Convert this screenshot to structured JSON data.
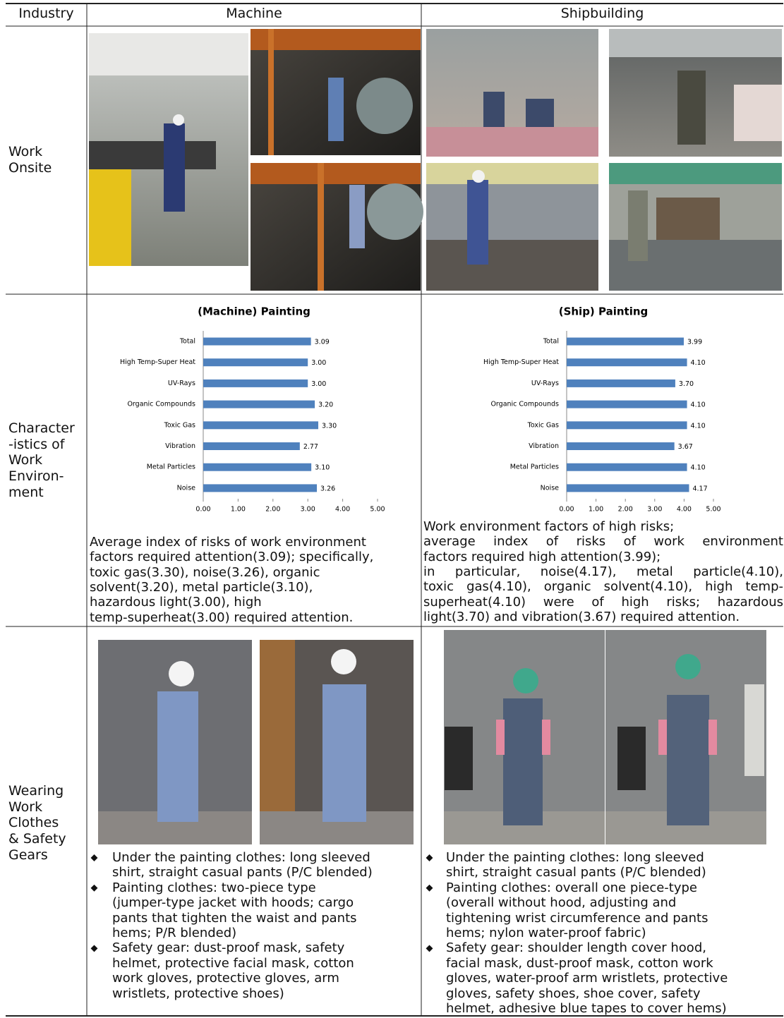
{
  "table": {
    "header": [
      "Industry",
      "Machine",
      "Shipbuilding"
    ],
    "row_labels": [
      [
        "Work",
        "Onsite"
      ],
      [
        "Character",
        "-istics of",
        "Work",
        "Environ-",
        "ment"
      ],
      [
        "Wearing",
        "Work",
        "Clothes",
        "& Safety",
        "Gears"
      ]
    ],
    "descriptions": [
      [
        [
          "Average index of risks of work environment",
          "factors required attention(3.09); specifically,",
          "toxic gas(3.30), noise(3.26), organic",
          "solvent(3.20), metal particle(3.10),",
          "hazardous light(3.00), high",
          "temp-superheat(3.00) required attention."
        ]
      ],
      [
        [
          "Work environment factors of high risks;"
        ],
        [
          "average index of risks of work environment",
          "factors required high attention(3.99);"
        ],
        [
          "in particular, noise(4.17), metal particle(4.10),",
          "toxic gas(4.10), organic solvent(4.10), high temp-",
          "superheat(4.10) were of high risks; hazardous",
          "light(3.70) and vibration(3.67) required attention."
        ]
      ]
    ],
    "bullets": [
      [
        [
          "Under the painting clothes: long sleeved",
          "shirt, straight casual pants (P/C blended)"
        ],
        [
          "Painting clothes: two-piece type",
          "(jumper-type jacket with hoods; cargo",
          "pants that tighten the waist and pants",
          "hems; P/R blended)"
        ],
        [
          "Safety gear: dust-proof mask, safety",
          "helmet, protective facial mask, cotton",
          "work gloves, protective gloves, arm",
          "wristlets, protective shoes)"
        ]
      ],
      [
        [
          "Under the painting clothes: long sleeved",
          "shirt, straight casual pants (P/C blended)"
        ],
        [
          "Painting clothes: overall one piece-type",
          "(overall without hood, adjusting and",
          "tightening wrist circumference and pants",
          "hems; nylon water-proof fabric)"
        ],
        [
          "Safety gear: shoulder length cover hood,",
          "facial mask, dust-proof mask, cotton work",
          "gloves, water-proof arm wristlets, protective",
          "gloves, safety shoes, shoe cover, safety",
          "helmet, adhesive blue tapes to cover hems)"
        ]
      ]
    ]
  },
  "chart_data": [
    {
      "type": "bar",
      "orientation": "horizontal",
      "title": "(Machine) Painting",
      "categories": [
        "Total",
        "High Temp-Super Heat",
        "UV-Rays",
        "Organic Compounds",
        "Toxic Gas",
        "Vibration",
        "Metal Particles",
        "Noise"
      ],
      "values": [
        3.09,
        3.0,
        3.0,
        3.2,
        3.3,
        2.77,
        3.1,
        3.26
      ],
      "value_labels": [
        "3.09",
        "3.00",
        "3.00",
        "3.20",
        "3.30",
        "2.77",
        "3.10",
        "3.26"
      ],
      "color": "#4f81bd",
      "xlim": [
        0,
        5
      ],
      "xticks": [
        {
          "value": 0,
          "label": "0.00"
        },
        {
          "value": 1,
          "label": "1.00"
        },
        {
          "value": 2,
          "label": "2.00"
        },
        {
          "value": 3,
          "label": "3.00"
        },
        {
          "value": 4,
          "label": "4.00"
        },
        {
          "value": 5,
          "label": "5.00"
        }
      ]
    },
    {
      "type": "bar",
      "orientation": "horizontal",
      "title": "(Ship) Painting",
      "categories": [
        "Total",
        "High Temp-Super Heat",
        "UV-Rays",
        "Organic Compounds",
        "Toxic Gas",
        "Vibration",
        "Metal Particles",
        "Noise"
      ],
      "values": [
        3.99,
        4.1,
        3.7,
        4.1,
        4.1,
        3.67,
        4.1,
        4.17
      ],
      "value_labels": [
        "3.99",
        "4.10",
        "3.70",
        "4.10",
        "4.10",
        "3.67",
        "4.10",
        "4.17"
      ],
      "color": "#4f81bd",
      "xlim": [
        0,
        5
      ],
      "xticks": [
        {
          "value": 0,
          "label": "0.00"
        },
        {
          "value": 1,
          "label": "1.00"
        },
        {
          "value": 2,
          "label": "2.00"
        },
        {
          "value": 3,
          "label": "3.00"
        },
        {
          "value": 4,
          "label": "4.00"
        },
        {
          "value": 5,
          "label": "5.00"
        }
      ]
    }
  ]
}
